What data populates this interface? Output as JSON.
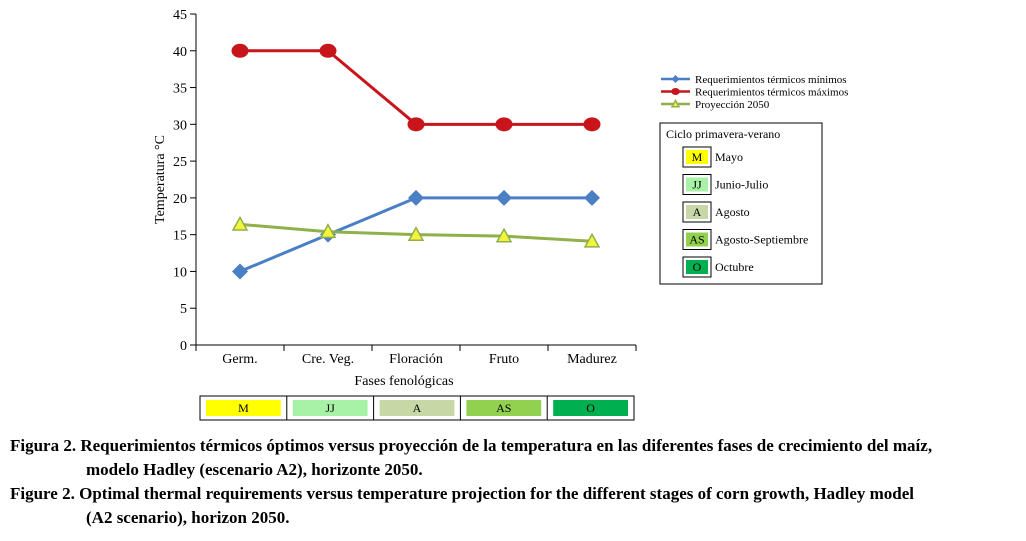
{
  "chart_data": {
    "type": "line",
    "xlabel": "Fases fenológicas",
    "ylabel": "Temperatura °C",
    "ylim": [
      0,
      45
    ],
    "yticks": [
      0,
      5,
      10,
      15,
      20,
      25,
      30,
      35,
      40,
      45
    ],
    "categories": [
      "Germ.",
      "Cre. Veg.",
      "Floración",
      "Fruto",
      "Madurez"
    ],
    "series": [
      {
        "name": "Requerimientos térmicos mínimos",
        "values": [
          10,
          15,
          20,
          20,
          20
        ],
        "color": "#4a7fc6",
        "marker": "diamond"
      },
      {
        "name": "Requerimientos térmicos máximos",
        "values": [
          40,
          40,
          30,
          30,
          30
        ],
        "color": "#c8151b",
        "marker": "circle"
      },
      {
        "name": "Proyección 2050",
        "values": [
          16.4,
          15.4,
          15.0,
          14.8,
          14.1
        ],
        "color": "#8fb04a",
        "marker": "triangle",
        "marker_fill": "#f5f33b"
      }
    ],
    "legend_placement": "right",
    "grid": false,
    "ciclo_legend": {
      "title": "Ciclo primavera-verano",
      "items": [
        {
          "code": "M",
          "label": "Mayo",
          "color": "#ffff00"
        },
        {
          "code": "JJ",
          "label": "Junio-Julio",
          "color": "#a8f2a8"
        },
        {
          "code": "A",
          "label": "Agosto",
          "color": "#c7d7a6"
        },
        {
          "code": "AS",
          "label": "Agosto-Septiembre",
          "color": "#92d050"
        },
        {
          "code": "O",
          "label": "Octubre",
          "color": "#00b050"
        }
      ]
    },
    "stage_band": [
      {
        "code": "M",
        "color": "#ffff00"
      },
      {
        "code": "JJ",
        "color": "#a8f2a8"
      },
      {
        "code": "A",
        "color": "#c7d7a6"
      },
      {
        "code": "AS",
        "color": "#92d050"
      },
      {
        "code": "O",
        "color": "#00b050"
      }
    ]
  },
  "caption": {
    "es_lead": "Figura 2.",
    "es_text_1": "Requerimientos térmicos óptimos versus proyección de la temperatura en las diferentes fases de crecimiento del maíz,",
    "es_text_2": "modelo Hadley (escenario A2), horizonte 2050.",
    "en_lead": "Figure 2.",
    "en_text_1": "Optimal thermal requirements versus temperature projection for the different stages of corn growth, Hadley model",
    "en_text_2": "(A2 scenario), horizon 2050."
  }
}
